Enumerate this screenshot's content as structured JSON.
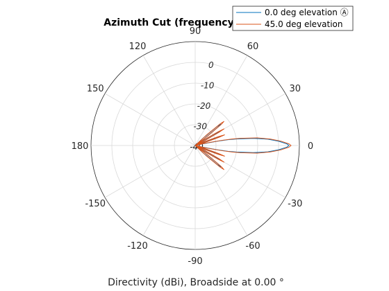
{
  "chart_data": {
    "type": "line",
    "subtype": "polar",
    "title": "Azimuth Cut (frequency",
    "caption": "Directivity (dBi), Broadside at 0.00 °",
    "angle_ticks": [
      "90",
      "60",
      "30",
      "0",
      "-30",
      "-60",
      "-90",
      "-120",
      "-150",
      "180",
      "150",
      "120"
    ],
    "angle_values": [
      90,
      60,
      30,
      0,
      -30,
      -60,
      -90,
      -120,
      -150,
      180,
      150,
      120
    ],
    "r_ticks": [
      "0",
      "-10",
      "-20",
      "-30",
      "-40"
    ],
    "r_values": [
      0,
      -10,
      -20,
      -30,
      -40
    ],
    "rlim": [
      -40,
      10
    ],
    "grid": true,
    "legend_position": "top-right",
    "colors": {
      "series1": "#0072BD",
      "series2": "#D95319"
    },
    "series": [
      {
        "name": "0.0 deg elevation Ⓐ",
        "color": "#0072BD",
        "angles": [
          -45,
          -43,
          -41,
          -40,
          -39,
          -37,
          -35,
          -33,
          -31,
          -30,
          -29,
          -27,
          -25,
          -23,
          -21,
          -20,
          -19,
          -17,
          -15,
          -13,
          -11,
          -10,
          -9,
          -7,
          -5,
          -3,
          -1,
          0,
          1,
          3,
          5,
          7,
          9,
          10,
          11,
          13,
          15,
          17,
          19,
          20,
          21,
          23,
          25,
          27,
          29,
          30,
          31,
          33,
          35,
          37,
          39,
          40,
          41,
          43,
          45
        ],
        "values": [
          -40,
          -35,
          -26,
          -24,
          -26,
          -35,
          -40,
          -36,
          -29,
          -26,
          -29,
          -36,
          -40,
          -38,
          -30,
          -27,
          -30,
          -38,
          -40,
          -37,
          -29,
          -24,
          -20,
          -12,
          -5,
          0,
          4,
          5,
          4,
          0,
          -5,
          -12,
          -20,
          -24,
          -29,
          -37,
          -40,
          -38,
          -30,
          -27,
          -30,
          -38,
          -40,
          -36,
          -29,
          -26,
          -29,
          -36,
          -40,
          -35,
          -26,
          -24,
          -26,
          -35,
          -40
        ]
      },
      {
        "name": "45.0 deg elevation",
        "color": "#D95319",
        "angles": [
          -45,
          -43,
          -41,
          -40,
          -39,
          -37,
          -35,
          -33,
          -31,
          -30,
          -29,
          -27,
          -25,
          -23,
          -21,
          -20,
          -19,
          -17,
          -15,
          -13,
          -11,
          -10,
          -9,
          -7,
          -5,
          -3,
          -1,
          0,
          1,
          3,
          5,
          7,
          9,
          10,
          11,
          13,
          15,
          17,
          19,
          20,
          21,
          23,
          25,
          27,
          29,
          30,
          31,
          33,
          35,
          37,
          39,
          40,
          41,
          43,
          45
        ],
        "values": [
          -40,
          -33,
          -24,
          -22,
          -24,
          -33,
          -40,
          -35,
          -27,
          -24,
          -27,
          -35,
          -40,
          -36,
          -28,
          -25,
          -28,
          -36,
          -40,
          -35,
          -27,
          -22,
          -18,
          -10,
          -4,
          1,
          5,
          6,
          5,
          1,
          -4,
          -10,
          -18,
          -22,
          -27,
          -35,
          -40,
          -36,
          -28,
          -25,
          -28,
          -36,
          -40,
          -35,
          -27,
          -24,
          -27,
          -35,
          -40,
          -33,
          -24,
          -22,
          -24,
          -33,
          -40
        ]
      }
    ]
  }
}
